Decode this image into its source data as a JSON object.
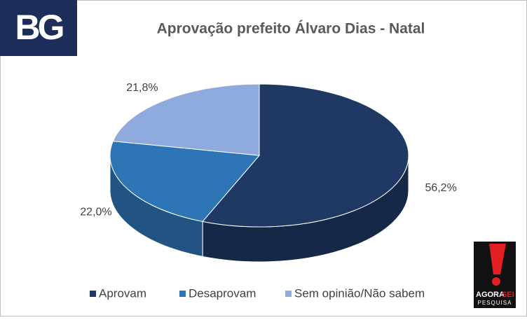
{
  "chart_data": {
    "type": "pie3d",
    "title": "Aprovação prefeito Álvaro Dias - Natal",
    "categories": [
      "Aprovam",
      "Desaprovam",
      "Sem opinião/Não sabem"
    ],
    "values": [
      56.2,
      22.0,
      21.8
    ],
    "value_labels": [
      "56,2%",
      "22,0%",
      "21,8%"
    ],
    "colors": [
      "#1f3864",
      "#2e75b6",
      "#8faadc"
    ],
    "legend": "bottom"
  },
  "logos": {
    "left": "BG",
    "right": {
      "line1a": "AGORA",
      "line1b": "SEI",
      "line2": "PESQUISA"
    }
  }
}
